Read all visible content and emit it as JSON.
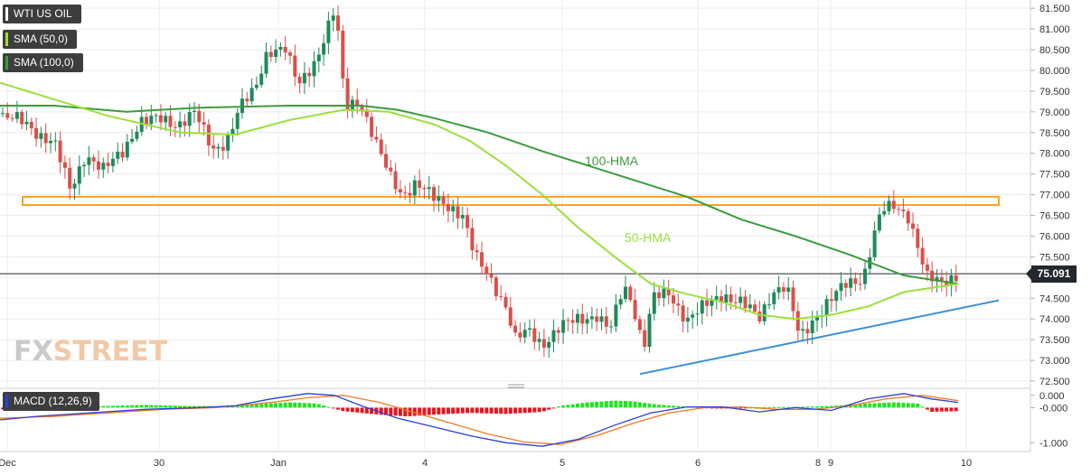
{
  "legend": {
    "symbol": "WTI US OIL",
    "sma50": "SMA (50,0)",
    "sma100": "SMA (100,0)",
    "macd": "MACD (12,26,9)"
  },
  "logo": {
    "part1": "FX",
    "part2": "STREET"
  },
  "current_price": "75.091",
  "colors": {
    "up": "#1e8a5a",
    "down": "#d9504a",
    "sma50": "#9be03c",
    "sma100": "#3e9a3e",
    "resistance": "#f7a31c",
    "support": "#3a8fd9",
    "macd_line": "#2a3fd8",
    "signal_line": "#f07a24",
    "hist_pos": "#1ee61e",
    "hist_neg": "#e8141e"
  },
  "chart_data": [
    {
      "type": "candlestick",
      "title": "WTI US OIL",
      "x_ticks": [
        "Dec",
        "30",
        "Jan",
        "4",
        "5",
        "6",
        "8",
        "9",
        "10"
      ],
      "y_ticks": [
        "81.500",
        "81.000",
        "80.500",
        "80.000",
        "79.500",
        "79.000",
        "78.500",
        "78.000",
        "77.500",
        "77.000",
        "76.500",
        "76.000",
        "75.500",
        "75.000",
        "74.500",
        "74.000",
        "73.500",
        "73.000",
        "72.500"
      ],
      "ylim": [
        72.5,
        81.7
      ],
      "x_range": [
        0,
        1140
      ],
      "current_price": 75.091,
      "ohlc_anchors": [
        [
          0,
          78.95
        ],
        [
          20,
          78.8
        ],
        [
          40,
          78.5
        ],
        [
          60,
          78.3
        ],
        [
          78,
          77.05
        ],
        [
          95,
          78.0
        ],
        [
          115,
          77.6
        ],
        [
          135,
          78.0
        ],
        [
          155,
          78.8
        ],
        [
          175,
          78.8
        ],
        [
          195,
          78.7
        ],
        [
          215,
          79.0
        ],
        [
          235,
          78.05
        ],
        [
          250,
          78.3
        ],
        [
          265,
          79.1
        ],
        [
          282,
          79.5
        ],
        [
          296,
          80.5
        ],
        [
          315,
          80.55
        ],
        [
          330,
          79.6
        ],
        [
          350,
          80.3
        ],
        [
          362,
          81.0
        ],
        [
          371,
          81.5
        ],
        [
          382,
          79.1
        ],
        [
          398,
          79.3
        ],
        [
          410,
          78.6
        ],
        [
          420,
          78.0
        ],
        [
          432,
          77.4
        ],
        [
          445,
          77.0
        ],
        [
          460,
          77.3
        ],
        [
          480,
          76.9
        ],
        [
          500,
          76.7
        ],
        [
          512,
          76.5
        ],
        [
          525,
          75.5
        ],
        [
          545,
          74.9
        ],
        [
          560,
          74.3
        ],
        [
          570,
          73.5
        ],
        [
          585,
          73.7
        ],
        [
          600,
          73.4
        ],
        [
          620,
          73.8
        ],
        [
          640,
          74.0
        ],
        [
          660,
          74.1
        ],
        [
          675,
          73.7
        ],
        [
          690,
          74.8
        ],
        [
          700,
          74.4
        ],
        [
          712,
          73.3
        ],
        [
          722,
          74.5
        ],
        [
          740,
          74.6
        ],
        [
          760,
          74.0
        ],
        [
          780,
          74.3
        ],
        [
          800,
          74.6
        ],
        [
          820,
          74.4
        ],
        [
          840,
          74.0
        ],
        [
          855,
          74.7
        ],
        [
          870,
          74.8
        ],
        [
          885,
          73.5
        ],
        [
          900,
          74.0
        ],
        [
          915,
          74.4
        ],
        [
          935,
          74.8
        ],
        [
          955,
          75.0
        ],
        [
          965,
          75.9
        ],
        [
          975,
          76.6
        ],
        [
          990,
          76.7
        ],
        [
          1005,
          76.5
        ],
        [
          1015,
          75.8
        ],
        [
          1025,
          75.0
        ],
        [
          1040,
          74.85
        ],
        [
          1060,
          75.1
        ]
      ],
      "series": [
        {
          "name": "50-HMA",
          "points": [
            [
              0,
              79.7
            ],
            [
              60,
              79.3
            ],
            [
              120,
              78.9
            ],
            [
              200,
              78.5
            ],
            [
              260,
              78.45
            ],
            [
              320,
              78.8
            ],
            [
              380,
              79.05
            ],
            [
              430,
              79.0
            ],
            [
              480,
              78.7
            ],
            [
              520,
              78.3
            ],
            [
              560,
              77.7
            ],
            [
              600,
              77.0
            ],
            [
              640,
              76.2
            ],
            [
              680,
              75.5
            ],
            [
              720,
              74.85
            ],
            [
              760,
              74.6
            ],
            [
              800,
              74.4
            ],
            [
              840,
              74.1
            ],
            [
              880,
              74.0
            ],
            [
              920,
              74.1
            ],
            [
              960,
              74.3
            ],
            [
              1000,
              74.65
            ],
            [
              1060,
              74.85
            ]
          ]
        },
        {
          "name": "100-HMA",
          "points": [
            [
              0,
              79.15
            ],
            [
              60,
              79.15
            ],
            [
              140,
              79.0
            ],
            [
              220,
              79.1
            ],
            [
              320,
              79.15
            ],
            [
              400,
              79.15
            ],
            [
              440,
              79.05
            ],
            [
              480,
              78.85
            ],
            [
              540,
              78.5
            ],
            [
              600,
              78.05
            ],
            [
              680,
              77.5
            ],
            [
              760,
              76.95
            ],
            [
              820,
              76.4
            ],
            [
              880,
              76.0
            ],
            [
              940,
              75.55
            ],
            [
              1000,
              75.05
            ],
            [
              1060,
              74.85
            ]
          ]
        }
      ],
      "annotations": [
        "100-HMA",
        "50-HMA"
      ],
      "resistance_zone": [
        76.75,
        76.95
      ],
      "support_line": [
        [
          708,
          72.67
        ],
        [
          1105,
          74.45
        ]
      ]
    },
    {
      "type": "line",
      "title": "MACD (12,26,9)",
      "y_ticks": [
        "0.000",
        "-0.000",
        "-1.000"
      ],
      "ylim": [
        -1.25,
        0.55
      ],
      "series": [
        {
          "name": "MACD",
          "points": [
            [
              0,
              -0.35
            ],
            [
              40,
              -0.25
            ],
            [
              100,
              -0.15
            ],
            [
              160,
              -0.05
            ],
            [
              220,
              0.0
            ],
            [
              260,
              0.05
            ],
            [
              300,
              0.25
            ],
            [
              340,
              0.4
            ],
            [
              370,
              0.35
            ],
            [
              400,
              0.05
            ],
            [
              440,
              -0.3
            ],
            [
              480,
              -0.55
            ],
            [
              520,
              -0.8
            ],
            [
              560,
              -1.0
            ],
            [
              600,
              -1.1
            ],
            [
              640,
              -0.9
            ],
            [
              680,
              -0.5
            ],
            [
              720,
              -0.15
            ],
            [
              760,
              0.02
            ],
            [
              800,
              0.02
            ],
            [
              840,
              -0.12
            ],
            [
              880,
              0.0
            ],
            [
              920,
              -0.08
            ],
            [
              960,
              0.25
            ],
            [
              1000,
              0.4
            ],
            [
              1030,
              0.25
            ],
            [
              1060,
              0.15
            ]
          ]
        },
        {
          "name": "Signal",
          "points": [
            [
              0,
              -0.3
            ],
            [
              60,
              -0.25
            ],
            [
              120,
              -0.15
            ],
            [
              180,
              -0.05
            ],
            [
              240,
              0.0
            ],
            [
              300,
              0.15
            ],
            [
              340,
              0.28
            ],
            [
              380,
              0.35
            ],
            [
              420,
              0.15
            ],
            [
              460,
              -0.15
            ],
            [
              500,
              -0.45
            ],
            [
              540,
              -0.75
            ],
            [
              580,
              -0.98
            ],
            [
              620,
              -1.05
            ],
            [
              660,
              -0.8
            ],
            [
              700,
              -0.45
            ],
            [
              740,
              -0.15
            ],
            [
              780,
              0.0
            ],
            [
              820,
              0.02
            ],
            [
              860,
              -0.05
            ],
            [
              900,
              -0.05
            ],
            [
              940,
              0.05
            ],
            [
              980,
              0.25
            ],
            [
              1020,
              0.35
            ],
            [
              1060,
              0.2
            ]
          ]
        }
      ],
      "histogram": [
        [
          0,
          -0.05
        ],
        [
          40,
          0.0
        ],
        [
          80,
          0.03
        ],
        [
          120,
          0.05
        ],
        [
          160,
          0.08
        ],
        [
          200,
          0.05
        ],
        [
          240,
          0.04
        ],
        [
          280,
          0.1
        ],
        [
          320,
          0.15
        ],
        [
          350,
          0.12
        ],
        [
          380,
          -0.1
        ],
        [
          420,
          -0.2
        ],
        [
          450,
          -0.25
        ],
        [
          480,
          -0.2
        ],
        [
          520,
          -0.15
        ],
        [
          560,
          -0.18
        ],
        [
          600,
          -0.12
        ],
        [
          620,
          0.05
        ],
        [
          650,
          0.15
        ],
        [
          680,
          0.2
        ],
        [
          700,
          0.18
        ],
        [
          730,
          0.08
        ],
        [
          760,
          0.03
        ],
        [
          800,
          -0.02
        ],
        [
          840,
          0.01
        ],
        [
          880,
          0.02
        ],
        [
          920,
          0.05
        ],
        [
          960,
          0.12
        ],
        [
          990,
          0.15
        ],
        [
          1015,
          0.12
        ],
        [
          1030,
          -0.12
        ],
        [
          1060,
          -0.1
        ]
      ]
    }
  ]
}
